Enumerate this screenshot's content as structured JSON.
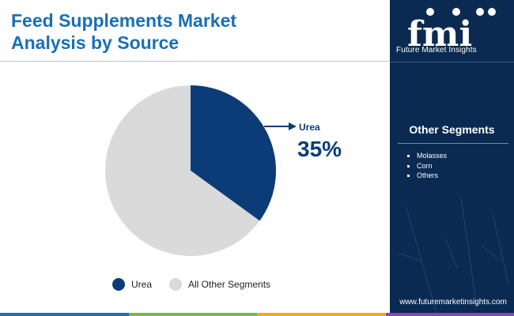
{
  "title_lines": [
    "Feed Supplements Market",
    "Analysis by Source"
  ],
  "chart_data": {
    "type": "pie",
    "slices": [
      {
        "label": "Urea",
        "value": 35,
        "color": "#0c3c78"
      },
      {
        "label": "All Other Segments",
        "value": 65,
        "color": "#dadada"
      }
    ],
    "callout": {
      "label": "Urea",
      "value_text": "35%"
    },
    "legend": {
      "placement": "bottom",
      "entries": [
        "Urea",
        "All Other Segments"
      ]
    }
  },
  "panel": {
    "logo_letters": "fmi",
    "logo_text": "Future Market Insights",
    "segments_title": "Other Segments",
    "segments": [
      "Molasses",
      "Corn",
      "Others"
    ],
    "website": "www.futuremarketinsights.com"
  },
  "colors": {
    "title": "#1a6fb5",
    "urea": "#0c3c78",
    "others": "#dadada",
    "panel_bg": "#0a2a52",
    "bottom_bar": [
      "#1a6fb5",
      "#7ab648",
      "#f5a623",
      "#8e44ad"
    ]
  }
}
